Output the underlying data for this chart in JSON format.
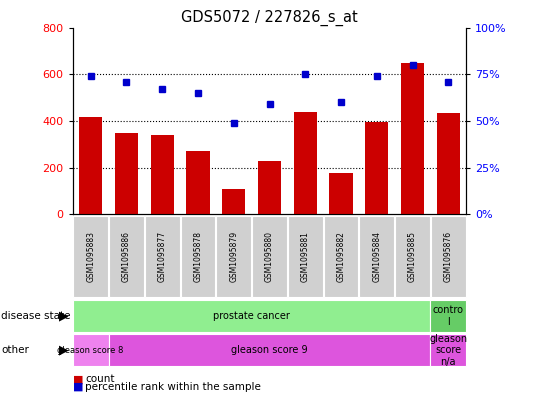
{
  "title": "GDS5072 / 227826_s_at",
  "samples": [
    "GSM1095883",
    "GSM1095886",
    "GSM1095877",
    "GSM1095878",
    "GSM1095879",
    "GSM1095880",
    "GSM1095881",
    "GSM1095882",
    "GSM1095884",
    "GSM1095885",
    "GSM1095876"
  ],
  "counts": [
    415,
    350,
    340,
    270,
    110,
    230,
    440,
    175,
    395,
    650,
    435
  ],
  "percentiles": [
    74,
    71,
    67,
    65,
    49,
    59,
    75,
    60,
    74,
    80,
    71
  ],
  "bar_color": "#cc0000",
  "dot_color": "#0000cc",
  "left_ylim": [
    0,
    800
  ],
  "right_ylim": [
    0,
    100
  ],
  "left_yticks": [
    0,
    200,
    400,
    600,
    800
  ],
  "right_yticks": [
    0,
    25,
    50,
    75,
    100
  ],
  "right_yticklabels": [
    "0%",
    "25%",
    "50%",
    "75%",
    "100%"
  ],
  "grid_values": [
    200,
    400,
    600
  ],
  "legend_count_color": "#cc0000",
  "legend_dot_color": "#0000cc",
  "ds_regions": [
    {
      "label": "prostate cancer",
      "start": 0,
      "end": 10,
      "color": "#90ee90"
    },
    {
      "label": "contro\nl",
      "start": 10,
      "end": 11,
      "color": "#66cc66"
    }
  ],
  "other_regions": [
    {
      "label": "gleason score 8",
      "start": 0,
      "end": 1,
      "color": "#ee82ee"
    },
    {
      "label": "gleason score 9",
      "start": 1,
      "end": 10,
      "color": "#dd55dd"
    },
    {
      "label": "gleason\nscore\nn/a",
      "start": 10,
      "end": 11,
      "color": "#dd55dd"
    }
  ]
}
